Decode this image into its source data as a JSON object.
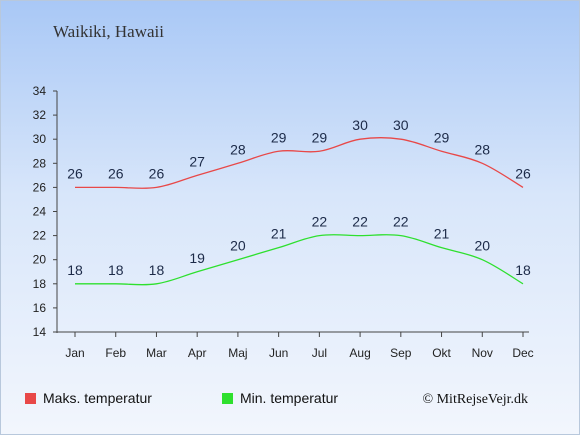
{
  "chart_data": {
    "type": "line",
    "title": "Waikiki, Hawaii",
    "categories": [
      "Jan",
      "Feb",
      "Mar",
      "Apr",
      "Maj",
      "Jun",
      "Jul",
      "Aug",
      "Sep",
      "Okt",
      "Nov",
      "Dec"
    ],
    "series": [
      {
        "name": "Maks. temperatur",
        "color": "#e84848",
        "values": [
          26,
          26,
          26,
          27,
          28,
          29,
          29,
          30,
          30,
          29,
          28,
          26
        ]
      },
      {
        "name": "Min. temperatur",
        "color": "#2ee02e",
        "values": [
          18,
          18,
          18,
          19,
          20,
          21,
          22,
          22,
          22,
          21,
          20,
          18
        ]
      }
    ],
    "ylim": [
      14,
      34
    ],
    "yticks": [
      14,
      16,
      18,
      20,
      22,
      24,
      26,
      28,
      30,
      32,
      34
    ],
    "grid": false,
    "legend_position": "bottom-left",
    "credit": "© MitRejseVejr.dk"
  }
}
